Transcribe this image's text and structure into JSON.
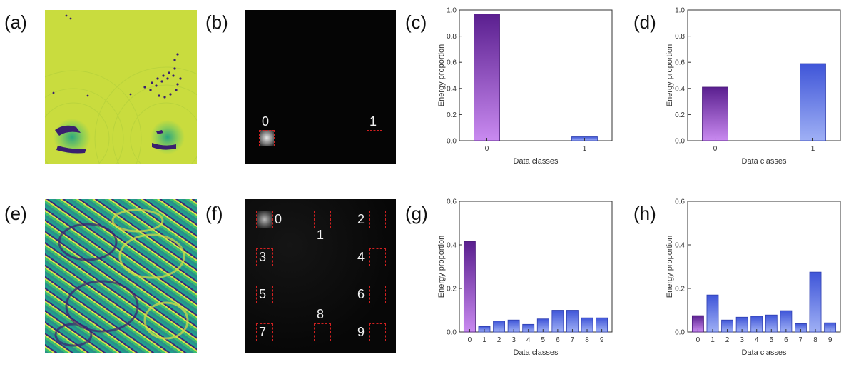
{
  "panels": {
    "a": "(a)",
    "b": "(b)",
    "c": "(c)",
    "d": "(d)",
    "e": "(e)",
    "f": "(f)",
    "g": "(g)",
    "h": "(h)"
  },
  "detectors_b": [
    "0",
    "1"
  ],
  "detectors_f": [
    "0",
    "1",
    "2",
    "3",
    "4",
    "5",
    "6",
    "7",
    "8",
    "9"
  ],
  "colors": {
    "bar_top_first": "#5a1f8f",
    "bar_bottom_first": "#c98af0",
    "bar_top": "#3f55d8",
    "bar_bottom": "#9fb0f5",
    "field_a": "#c9dc3e"
  },
  "chart_data": [
    {
      "panel": "c",
      "type": "bar",
      "categories": [
        "0",
        "1"
      ],
      "values": [
        0.97,
        0.03
      ],
      "xlabel": "Data classes",
      "ylabel": "Energy proportion",
      "ylim": [
        0,
        1.0
      ],
      "yticks": [
        "0.0",
        "0.2",
        "0.4",
        "0.6",
        "0.8",
        "1.0"
      ],
      "grid": false
    },
    {
      "panel": "d",
      "type": "bar",
      "categories": [
        "0",
        "1"
      ],
      "values": [
        0.41,
        0.59
      ],
      "xlabel": "Data classes",
      "ylabel": "Energy proportion",
      "ylim": [
        0,
        1.0
      ],
      "yticks": [
        "0.0",
        "0.2",
        "0.4",
        "0.6",
        "0.8",
        "1.0"
      ],
      "grid": false
    },
    {
      "panel": "g",
      "type": "bar",
      "categories": [
        "0",
        "1",
        "2",
        "3",
        "4",
        "5",
        "6",
        "7",
        "8",
        "9"
      ],
      "values": [
        0.415,
        0.025,
        0.05,
        0.055,
        0.035,
        0.06,
        0.1,
        0.1,
        0.065,
        0.065
      ],
      "xlabel": "Data classes",
      "ylabel": "Energy proportion",
      "ylim": [
        0,
        0.6
      ],
      "yticks": [
        "0.0",
        "0.2",
        "0.4",
        "0.6"
      ],
      "grid": false
    },
    {
      "panel": "h",
      "type": "bar",
      "categories": [
        "0",
        "1",
        "2",
        "3",
        "4",
        "5",
        "6",
        "7",
        "8",
        "9"
      ],
      "values": [
        0.075,
        0.17,
        0.055,
        0.068,
        0.072,
        0.078,
        0.098,
        0.038,
        0.275,
        0.042
      ],
      "xlabel": "Data classes",
      "ylabel": "Energy proportion",
      "ylim": [
        0,
        0.6
      ],
      "yticks": [
        "0.0",
        "0.2",
        "0.4",
        "0.6"
      ],
      "grid": false
    }
  ]
}
